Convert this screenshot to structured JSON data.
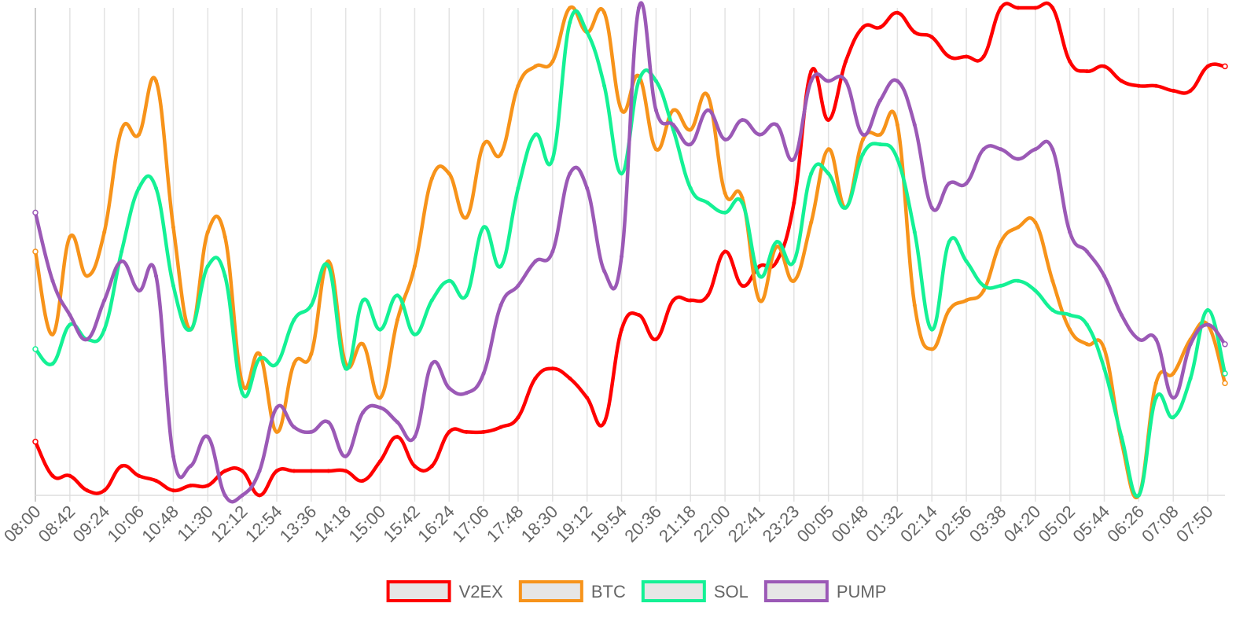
{
  "chart_data": {
    "type": "line",
    "categories": [
      "08:00",
      null,
      "08:42",
      null,
      "09:24",
      null,
      "10:06",
      null,
      "10:48",
      null,
      "11:30",
      null,
      "12:12",
      null,
      "12:54",
      null,
      "13:36",
      null,
      "14:18",
      null,
      "15:00",
      null,
      "15:42",
      null,
      "16:24",
      null,
      "17:06",
      null,
      "17:48",
      null,
      "18:30",
      null,
      "19:12",
      null,
      "19:54",
      null,
      "20:36",
      null,
      "21:18",
      null,
      "22:00",
      null,
      "22:41",
      null,
      "23:23",
      null,
      "00:05",
      null,
      "00:48",
      null,
      "01:32",
      null,
      "02:14",
      null,
      "02:56",
      null,
      "03:38",
      null,
      "04:20",
      null,
      "05:02",
      null,
      "05:44",
      null,
      "06:26",
      null,
      "07:08",
      null,
      "07:50",
      null
    ],
    "ylim": [
      0,
      100
    ],
    "grid": true,
    "legend": "bottom",
    "series": [
      {
        "name": "V2EX",
        "color": "#ff0000",
        "values": [
          11,
          4,
          4,
          1,
          1,
          6,
          4,
          3,
          1,
          2,
          2,
          5,
          5,
          0,
          5,
          5,
          5,
          5,
          5,
          3,
          7,
          12,
          6,
          6,
          13,
          13,
          13,
          14,
          16,
          24,
          26,
          24,
          20,
          15,
          34,
          37,
          32,
          40,
          40,
          41,
          50,
          43,
          47,
          48,
          60,
          87,
          77,
          89,
          96,
          96,
          99,
          95,
          94,
          90,
          90,
          90,
          100,
          100,
          100,
          100,
          89,
          87,
          88,
          85,
          84,
          84,
          83,
          83,
          88,
          88
        ]
      },
      {
        "name": "BTC",
        "color": "#f7931a",
        "values": [
          50,
          33,
          53,
          45,
          54,
          75,
          74,
          85,
          55,
          34,
          54,
          53,
          23,
          29,
          13,
          27,
          29,
          48,
          27,
          31,
          20,
          36,
          47,
          65,
          66,
          57,
          72,
          70,
          84,
          88,
          89,
          100,
          95,
          99,
          79,
          86,
          71,
          79,
          75,
          82,
          62,
          61,
          40,
          51,
          44,
          56,
          71,
          59,
          73,
          74,
          76,
          39,
          30,
          38,
          40,
          42,
          52,
          55,
          56,
          44,
          34,
          31,
          30,
          11,
          0,
          23,
          25,
          32,
          35,
          23
        ]
      },
      {
        "name": "SOL",
        "color": "#14f195",
        "values": [
          30,
          27,
          35,
          32,
          34,
          50,
          63,
          63,
          43,
          34,
          47,
          45,
          21,
          28,
          27,
          36,
          39,
          47,
          26,
          40,
          34,
          41,
          33,
          40,
          44,
          41,
          55,
          47,
          63,
          74,
          69,
          97,
          95,
          84,
          66,
          85,
          85,
          75,
          63,
          60,
          58,
          60,
          45,
          52,
          48,
          66,
          66,
          59,
          70,
          72,
          69,
          54,
          34,
          52,
          48,
          43,
          43,
          44,
          42,
          38,
          37,
          35,
          26,
          12,
          0,
          20,
          16,
          24,
          38,
          25
        ]
      },
      {
        "name": "PUMP",
        "color": "#9b59b6",
        "values": [
          58,
          44,
          37,
          32,
          40,
          48,
          42,
          45,
          8,
          6,
          12,
          0,
          0,
          5,
          18,
          14,
          13,
          15,
          8,
          17,
          18,
          15,
          12,
          27,
          22,
          21,
          25,
          39,
          43,
          48,
          50,
          66,
          63,
          46,
          49,
          100,
          79,
          76,
          72,
          79,
          73,
          77,
          74,
          76,
          69,
          85,
          85,
          85,
          74,
          81,
          85,
          76,
          59,
          64,
          64,
          71,
          71,
          69,
          71,
          71,
          54,
          50,
          45,
          37,
          32,
          32,
          20,
          31,
          35,
          31
        ]
      }
    ]
  }
}
